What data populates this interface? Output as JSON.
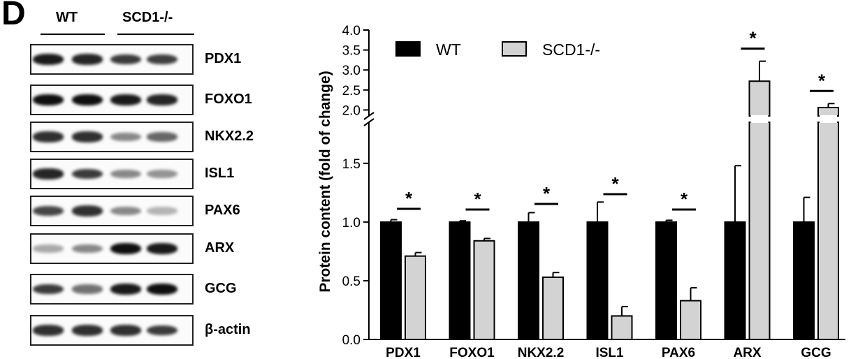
{
  "panel_label": "D",
  "blot": {
    "groups": [
      {
        "label": "WT"
      },
      {
        "label": "SCD1-/-"
      }
    ],
    "rows": [
      {
        "label": "PDX1",
        "bands": [
          0.95,
          0.9,
          0.8,
          0.78
        ]
      },
      {
        "label": "FOXO1",
        "bands": [
          1.0,
          1.0,
          0.95,
          0.9
        ]
      },
      {
        "label": "NKX2.2",
        "bands": [
          0.85,
          0.85,
          0.45,
          0.6
        ]
      },
      {
        "label": "ISL1",
        "bands": [
          0.9,
          0.8,
          0.45,
          0.4
        ]
      },
      {
        "label": "PAX6",
        "bands": [
          0.75,
          0.85,
          0.45,
          0.25
        ]
      },
      {
        "label": "ARX",
        "bands": [
          0.3,
          0.45,
          1.0,
          0.95
        ]
      },
      {
        "label": "GCG",
        "bands": [
          0.8,
          0.55,
          0.95,
          1.0
        ]
      },
      {
        "label": "β-actin",
        "bands": [
          0.85,
          0.85,
          0.85,
          0.8
        ]
      }
    ]
  },
  "chart_data": {
    "type": "bar",
    "ylabel": "Protein content (fold of change)",
    "categories": [
      "PDX1",
      "FOXO1",
      "NKX2.2",
      "ISL1",
      "PAX6",
      "ARX",
      "GCG"
    ],
    "series": [
      {
        "name": "WT",
        "color": "#000000",
        "values": [
          1.0,
          1.0,
          1.0,
          1.0,
          1.0,
          1.0,
          1.0
        ],
        "errors": [
          0.02,
          0.01,
          0.08,
          0.17,
          0.015,
          0.48,
          0.21
        ]
      },
      {
        "name": "SCD1-/-",
        "color": "#d3d3d3",
        "values": [
          0.71,
          0.84,
          0.53,
          0.2,
          0.33,
          2.72,
          2.06
        ],
        "errors": [
          0.03,
          0.02,
          0.04,
          0.08,
          0.11,
          0.5,
          0.1
        ]
      }
    ],
    "significance": [
      "*",
      "*",
      "*",
      "*",
      "*",
      "*",
      "*"
    ],
    "y_axis_lower": {
      "range": [
        0,
        1.85
      ],
      "ticks": [
        "0.0",
        "0.5",
        "1.0",
        "1.5"
      ]
    },
    "y_axis_upper": {
      "range": [
        1.85,
        4.0
      ],
      "ticks": [
        "2.0",
        "2.5",
        "3.0",
        "3.5",
        "4.0"
      ]
    },
    "axis_break": true,
    "legend_position": "top-left"
  }
}
